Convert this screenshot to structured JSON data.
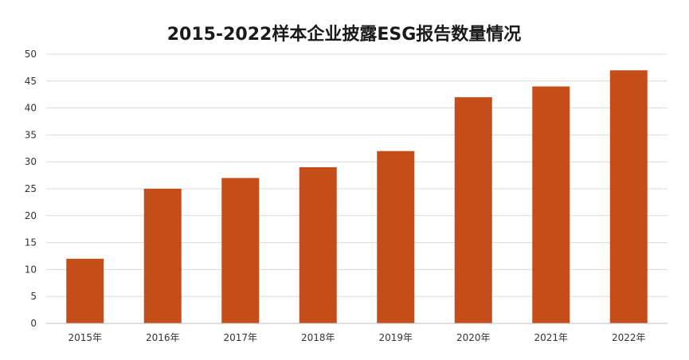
{
  "chart_data": {
    "type": "bar",
    "title": "2015-2022样本企业披露ESG报告数量情况",
    "categories": [
      "2015年",
      "2016年",
      "2017年",
      "2018年",
      "2019年",
      "2020年",
      "2021年",
      "2022年"
    ],
    "values": [
      12,
      25,
      27,
      29,
      32,
      42,
      44,
      47
    ],
    "ylim": [
      0,
      50
    ],
    "yticks": [
      0,
      5,
      10,
      15,
      20,
      25,
      30,
      35,
      40,
      45,
      50
    ],
    "grid": true,
    "legend": "none",
    "bar_color": "#c44d1a"
  }
}
